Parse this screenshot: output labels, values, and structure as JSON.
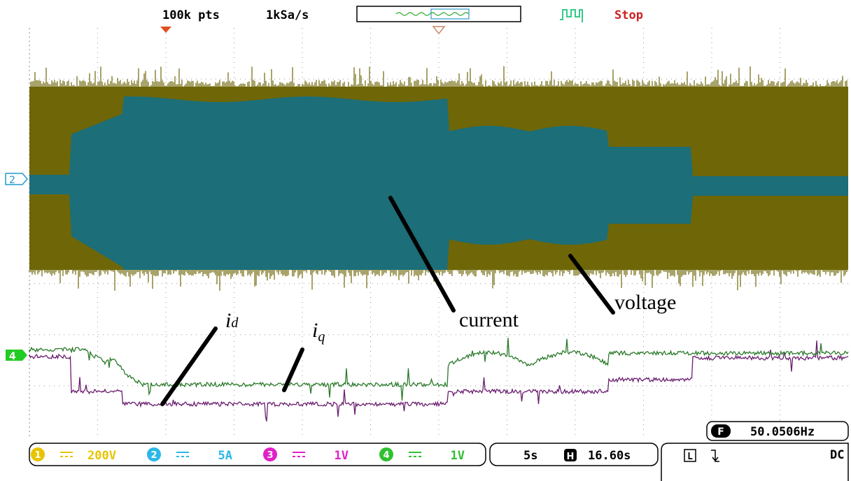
{
  "header": {
    "memory_depth": "100k pts",
    "sample_rate": "1kSa/s",
    "run_state": "Stop"
  },
  "markers": {
    "channel_2": "2",
    "channel_4": "4"
  },
  "annotations": {
    "current": "current",
    "voltage": "voltage",
    "i_d": {
      "main": "i",
      "sub": "d"
    },
    "i_q": {
      "main": "i",
      "sub": "q"
    }
  },
  "frequency": {
    "icon": "F",
    "value": "50.0506Hz"
  },
  "channels": [
    {
      "number": "1",
      "scale": "200V"
    },
    {
      "number": "2",
      "scale": "5A"
    },
    {
      "number": "3",
      "scale": "1V"
    },
    {
      "number": "4",
      "scale": "1V"
    }
  ],
  "timebase": {
    "scale": "5s",
    "icon": "H",
    "position": "16.60s"
  },
  "trigger": {
    "mode": "L",
    "coupling": "DC"
  }
}
